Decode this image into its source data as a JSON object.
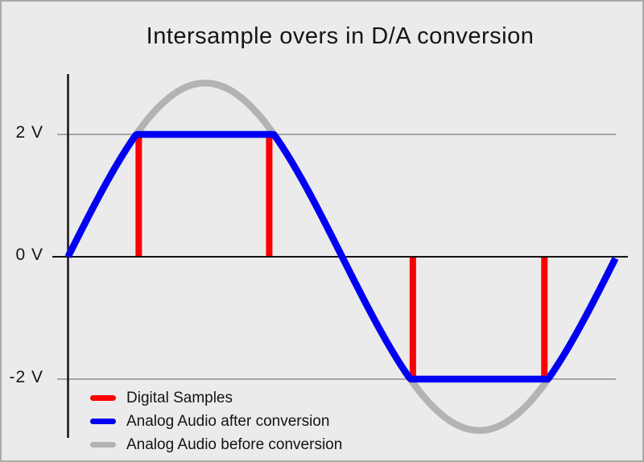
{
  "chart_data": {
    "type": "line",
    "title": "Intersample overs in D/A conversion",
    "xlabel": "",
    "ylabel": "",
    "y_unit": "V",
    "ylim": [
      -2.9,
      2.9
    ],
    "grid": "horizontal-only",
    "legend_position": "bottom-left",
    "y_ticks": [
      {
        "value": 2,
        "label": "2 V"
      },
      {
        "value": 0,
        "label": "0 V"
      },
      {
        "value": -2,
        "label": "-2 V"
      }
    ],
    "waveform": {
      "shape": "sine",
      "cycles_shown": 1,
      "original_peak_amplitude_v": 2.84,
      "dac_clip_level_v": 2.0
    },
    "series": [
      {
        "name": "Analog Audio before conversion",
        "color": "#b3b3b3",
        "form": "full-sine",
        "amplitude_v": 2.84
      },
      {
        "name": "Analog Audio after conversion",
        "color": "#0000f2",
        "form": "sine-clipped",
        "amplitude_v": 2.84,
        "clipped_at_v": 2.0
      }
    ],
    "digital_samples": {
      "name": "Digital Samples",
      "color": "#fb0000",
      "values_v": [
        2,
        2,
        -2,
        -2
      ],
      "phase_fraction_of_cycle": [
        0.129,
        0.367,
        0.629,
        0.869
      ]
    },
    "legend": [
      {
        "label": "Digital Samples",
        "color": "#fb0000"
      },
      {
        "label": "Analog Audio after conversion",
        "color": "#0000f2"
      },
      {
        "label": "Analog Audio before conversion",
        "color": "#b3b3b3"
      }
    ],
    "colors": {
      "background": "#ebebeb",
      "frame_border": "#aaaaaa",
      "axis": "#141414",
      "gridline": "#a5a5a5",
      "text": "#141414"
    }
  }
}
